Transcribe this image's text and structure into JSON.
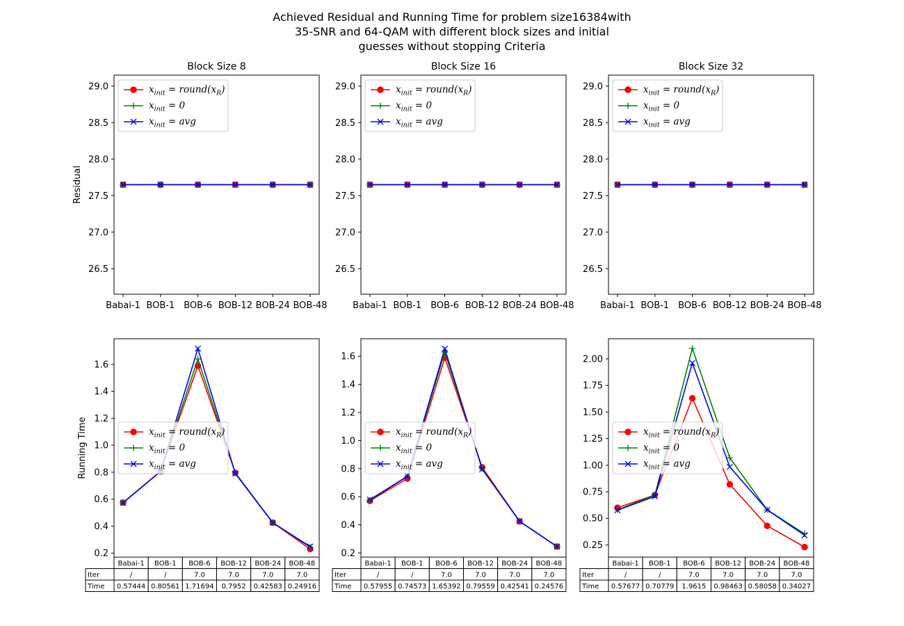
{
  "figure": {
    "title_lines": [
      "Achieved Residual and Running Time for problem size16384with",
      "35-SNR and 64-QAM with different block sizes and initial",
      "guesses without stopping Criteria"
    ]
  },
  "colors": {
    "round": "#ff0000",
    "zero": "#008000",
    "avg": "#0000ff"
  },
  "legend_labels": [
    "x_init = round(x_R)",
    "x_init = 0",
    "x_init = avg"
  ],
  "chart_data": [
    {
      "type": "line",
      "panel": "residual",
      "title": "Block Size 8",
      "ylabel": "Residual",
      "categories": [
        "Babai-1",
        "BOB-1",
        "BOB-6",
        "BOB-12",
        "BOB-24",
        "BOB-48"
      ],
      "ylim": [
        26.15,
        29.15
      ],
      "yticks": [
        "26.5",
        "27.0",
        "27.5",
        "28.0",
        "28.5",
        "29.0"
      ],
      "legend": "upper-left",
      "series": [
        {
          "name": "x_init = round(x_R)",
          "values": [
            27.65,
            27.65,
            27.65,
            27.65,
            27.65,
            27.65
          ]
        },
        {
          "name": "x_init = 0",
          "values": [
            27.65,
            27.65,
            27.65,
            27.65,
            27.65,
            27.65
          ]
        },
        {
          "name": "x_init = avg",
          "values": [
            27.65,
            27.65,
            27.65,
            27.65,
            27.65,
            27.65
          ]
        }
      ]
    },
    {
      "type": "line",
      "panel": "residual",
      "title": "Block Size 16",
      "ylabel": "",
      "categories": [
        "Babai-1",
        "BOB-1",
        "BOB-6",
        "BOB-12",
        "BOB-24",
        "BOB-48"
      ],
      "ylim": [
        26.15,
        29.15
      ],
      "yticks": [
        "26.5",
        "27.0",
        "27.5",
        "28.0",
        "28.5",
        "29.0"
      ],
      "legend": "upper-left",
      "series": [
        {
          "name": "x_init = round(x_R)",
          "values": [
            27.65,
            27.65,
            27.65,
            27.65,
            27.65,
            27.65
          ]
        },
        {
          "name": "x_init = 0",
          "values": [
            27.65,
            27.65,
            27.65,
            27.65,
            27.65,
            27.65
          ]
        },
        {
          "name": "x_init = avg",
          "values": [
            27.65,
            27.65,
            27.65,
            27.65,
            27.65,
            27.65
          ]
        }
      ]
    },
    {
      "type": "line",
      "panel": "residual",
      "title": "Block Size 32",
      "ylabel": "",
      "categories": [
        "Babai-1",
        "BOB-1",
        "BOB-6",
        "BOB-12",
        "BOB-24",
        "BOB-48"
      ],
      "ylim": [
        26.15,
        29.15
      ],
      "yticks": [
        "26.5",
        "27.0",
        "27.5",
        "28.0",
        "28.5",
        "29.0"
      ],
      "legend": "upper-left",
      "series": [
        {
          "name": "x_init = round(x_R)",
          "values": [
            27.65,
            27.65,
            27.65,
            27.65,
            27.65,
            27.65
          ]
        },
        {
          "name": "x_init = 0",
          "values": [
            27.65,
            27.65,
            27.65,
            27.65,
            27.65,
            27.65
          ]
        },
        {
          "name": "x_init = avg",
          "values": [
            27.65,
            27.65,
            27.65,
            27.65,
            27.65,
            27.65
          ]
        }
      ]
    },
    {
      "type": "line",
      "panel": "time",
      "title": "",
      "ylabel": "Running Time",
      "categories": [
        "Babai-1",
        "BOB-1",
        "BOB-6",
        "BOB-12",
        "BOB-24",
        "BOB-48"
      ],
      "ylim": [
        0.17,
        1.79
      ],
      "yticks": [
        "0.2",
        "0.4",
        "0.6",
        "0.8",
        "1.0",
        "1.2",
        "1.4",
        "1.6"
      ],
      "legend": "center-left",
      "series": [
        {
          "name": "x_init = round(x_R)",
          "values": [
            0.57444,
            0.80561,
            1.59,
            0.7952,
            0.42583,
            0.23
          ]
        },
        {
          "name": "x_init = 0",
          "values": [
            0.575,
            0.806,
            1.64,
            0.795,
            0.426,
            0.245
          ]
        },
        {
          "name": "x_init = avg",
          "values": [
            0.573,
            0.805,
            1.71694,
            0.79,
            0.425,
            0.24916
          ]
        }
      ],
      "table": {
        "row_labels": [
          "Iter",
          "Time"
        ],
        "col_labels": [
          "Babai-1",
          "BOB-1",
          "BOB-6",
          "BOB-12",
          "BOB-24",
          "BOB-48"
        ],
        "rows": [
          [
            "/",
            "/",
            "7.0",
            "7.0",
            "7.0",
            "7.0"
          ],
          [
            "0.57444",
            "0.80561",
            "1.71694",
            "0.7952",
            "0.42583",
            "0.24916"
          ]
        ]
      }
    },
    {
      "type": "line",
      "panel": "time",
      "title": "",
      "ylabel": "",
      "categories": [
        "Babai-1",
        "BOB-1",
        "BOB-6",
        "BOB-12",
        "BOB-24",
        "BOB-48"
      ],
      "ylim": [
        0.17,
        1.725
      ],
      "yticks": [
        "0.2",
        "0.4",
        "0.6",
        "0.8",
        "1.0",
        "1.2",
        "1.4",
        "1.6"
      ],
      "legend": "center-left",
      "series": [
        {
          "name": "x_init = round(x_R)",
          "values": [
            0.57,
            0.73,
            1.59,
            0.81,
            0.425,
            0.245
          ]
        },
        {
          "name": "x_init = 0",
          "values": [
            0.575,
            0.745,
            1.63,
            0.8,
            0.425,
            0.245
          ]
        },
        {
          "name": "x_init = avg",
          "values": [
            0.57955,
            0.74573,
            1.65392,
            0.79559,
            0.42541,
            0.24576
          ]
        }
      ],
      "table": {
        "row_labels": [
          "Iter",
          "Time"
        ],
        "col_labels": [
          "Babai-1",
          "BOB-1",
          "BOB-6",
          "BOB-12",
          "BOB-24",
          "BOB-48"
        ],
        "rows": [
          [
            "/",
            "/",
            "7.0",
            "7.0",
            "7.0",
            "7.0"
          ],
          [
            "0.57955",
            "0.74573",
            "1.65392",
            "0.79559",
            "0.42541",
            "0.24576"
          ]
        ]
      }
    },
    {
      "type": "line",
      "panel": "time",
      "title": "",
      "ylabel": "",
      "categories": [
        "Babai-1",
        "BOB-1",
        "BOB-6",
        "BOB-12",
        "BOB-24",
        "BOB-48"
      ],
      "ylim": [
        0.135,
        2.19
      ],
      "yticks": [
        "0.25",
        "0.50",
        "0.75",
        "1.00",
        "1.25",
        "1.50",
        "1.75",
        "2.00"
      ],
      "legend": "center-left",
      "series": [
        {
          "name": "x_init = round(x_R)",
          "values": [
            0.6,
            0.72,
            1.63,
            0.82,
            0.43,
            0.23
          ]
        },
        {
          "name": "x_init = 0",
          "values": [
            0.58,
            0.72,
            2.1,
            1.07,
            0.58058,
            0.355
          ]
        },
        {
          "name": "x_init = avg",
          "values": [
            0.57677,
            0.70779,
            1.9615,
            0.98463,
            0.58058,
            0.34027
          ]
        }
      ],
      "table": {
        "row_labels": [
          "Iter",
          "Time"
        ],
        "col_labels": [
          "Babai-1",
          "BOB-1",
          "BOB-6",
          "BOB-12",
          "BOB-24",
          "BOB-48"
        ],
        "rows": [
          [
            "/",
            "/",
            "7.0",
            "7.0",
            "7.0",
            "7.0"
          ],
          [
            "0.57677",
            "0.70779",
            "1.9615",
            "0.98463",
            "0.58058",
            "0.34027"
          ]
        ]
      }
    }
  ]
}
